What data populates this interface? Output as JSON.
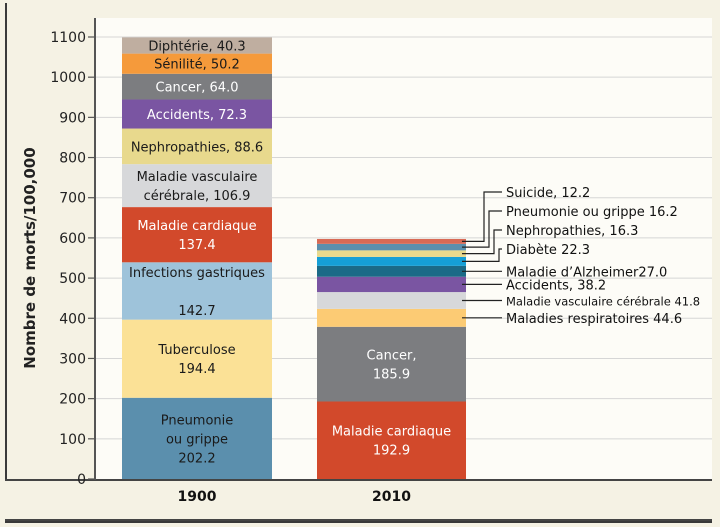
{
  "chart_data": {
    "type": "bar",
    "stacked": true,
    "title": "",
    "xlabel": "",
    "ylabel": "Nombre de morts/100,000",
    "ylim": [
      0,
      1100
    ],
    "yticks": [
      0,
      100,
      200,
      300,
      400,
      500,
      600,
      700,
      800,
      900,
      1000,
      1100
    ],
    "grid": true,
    "categories": [
      "1900",
      "2010"
    ],
    "bars": [
      {
        "category": "1900",
        "segments": [
          {
            "name": "Pneumonie ou grippe",
            "value": 202.2,
            "label_lines": [
              "Pneumonie",
              "ou grippe",
              "202.2"
            ],
            "color": "#5b8fad",
            "text_color": "#1a1a1a"
          },
          {
            "name": "Tuberculose",
            "value": 194.4,
            "label_lines": [
              "Tuberculose",
              "194.4"
            ],
            "color": "#fbe196",
            "text_color": "#1a1a1a"
          },
          {
            "name": "Infections gastriques",
            "value": 142.7,
            "label_lines": [
              "Infections gastriques",
              "",
              "142.7"
            ],
            "color": "#9ec3da",
            "text_color": "#1a1a1a"
          },
          {
            "name": "Maladie cardiaque",
            "value": 137.4,
            "label_lines": [
              "Maladie cardiaque",
              "137.4"
            ],
            "color": "#d2492b",
            "text_color": "#ffffff"
          },
          {
            "name": "Maladie vasculaire cérébrale",
            "value": 106.9,
            "label_lines": [
              "Maladie vasculaire",
              "cérébrale, 106.9"
            ],
            "color": "#d7d8da",
            "text_color": "#1a1a1a"
          },
          {
            "name": "Nephropathies",
            "value": 88.6,
            "label_lines": [
              "Nephropathies, 88.6"
            ],
            "color": "#e8d98d",
            "text_color": "#1a1a1a"
          },
          {
            "name": "Accidents",
            "value": 72.3,
            "label_lines": [
              "Accidents, 72.3"
            ],
            "color": "#7a55a2",
            "text_color": "#ffffff"
          },
          {
            "name": "Cancer",
            "value": 64.0,
            "label_lines": [
              "Cancer, 64.0"
            ],
            "color": "#7c7d80",
            "text_color": "#ffffff"
          },
          {
            "name": "Sénilité",
            "value": 50.2,
            "label_lines": [
              "Sénilité, 50.2"
            ],
            "color": "#f59a3b",
            "text_color": "#1a1a1a"
          },
          {
            "name": "Diphtérie",
            "value": 40.3,
            "label_lines": [
              "Diphtérie, 40.3"
            ],
            "color": "#bfaea0",
            "text_color": "#1a1a1a"
          }
        ]
      },
      {
        "category": "2010",
        "segments": [
          {
            "name": "Maladie cardiaque",
            "value": 192.9,
            "label_lines": [
              "Maladie cardiaque",
              "192.9"
            ],
            "color": "#d2492b",
            "text_color": "#ffffff"
          },
          {
            "name": "Cancer",
            "value": 185.9,
            "label_lines": [
              "Cancer,",
              "185.9"
            ],
            "color": "#7c7d80",
            "text_color": "#ffffff"
          },
          {
            "name": "Maladies respiratoires",
            "value": 44.6,
            "callout": "Maladies respiratoires  44.6",
            "color": "#fccb74"
          },
          {
            "name": "Maladie vasculaire cérébrale",
            "value": 41.8,
            "callout": "Maladie vasculaire cérébrale 41.8",
            "color": "#d7d8da"
          },
          {
            "name": "Accidents",
            "value": 38.2,
            "callout": "Accidents, 38.2",
            "color": "#7a55a2"
          },
          {
            "name": "Maladie d’Alzheimer",
            "value": 27.0,
            "callout": "Maladie d’Alzheimer27.0",
            "color": "#1b6a87"
          },
          {
            "name": "Diabète",
            "value": 22.3,
            "callout": "Diabète  22.3",
            "color": "#159fd6"
          },
          {
            "name": "Nephropathies",
            "value": 16.3,
            "callout": "Nephropathies, 16.3",
            "color": "#e8d98d"
          },
          {
            "name": "Pneumonie ou grippe",
            "value": 16.2,
            "callout": "Pneumonie ou grippe  16.2",
            "color": "#5b8fad"
          },
          {
            "name": "Suicide",
            "value": 12.2,
            "callout": "Suicide, 12.2",
            "color": "#d86a55"
          }
        ]
      }
    ]
  }
}
